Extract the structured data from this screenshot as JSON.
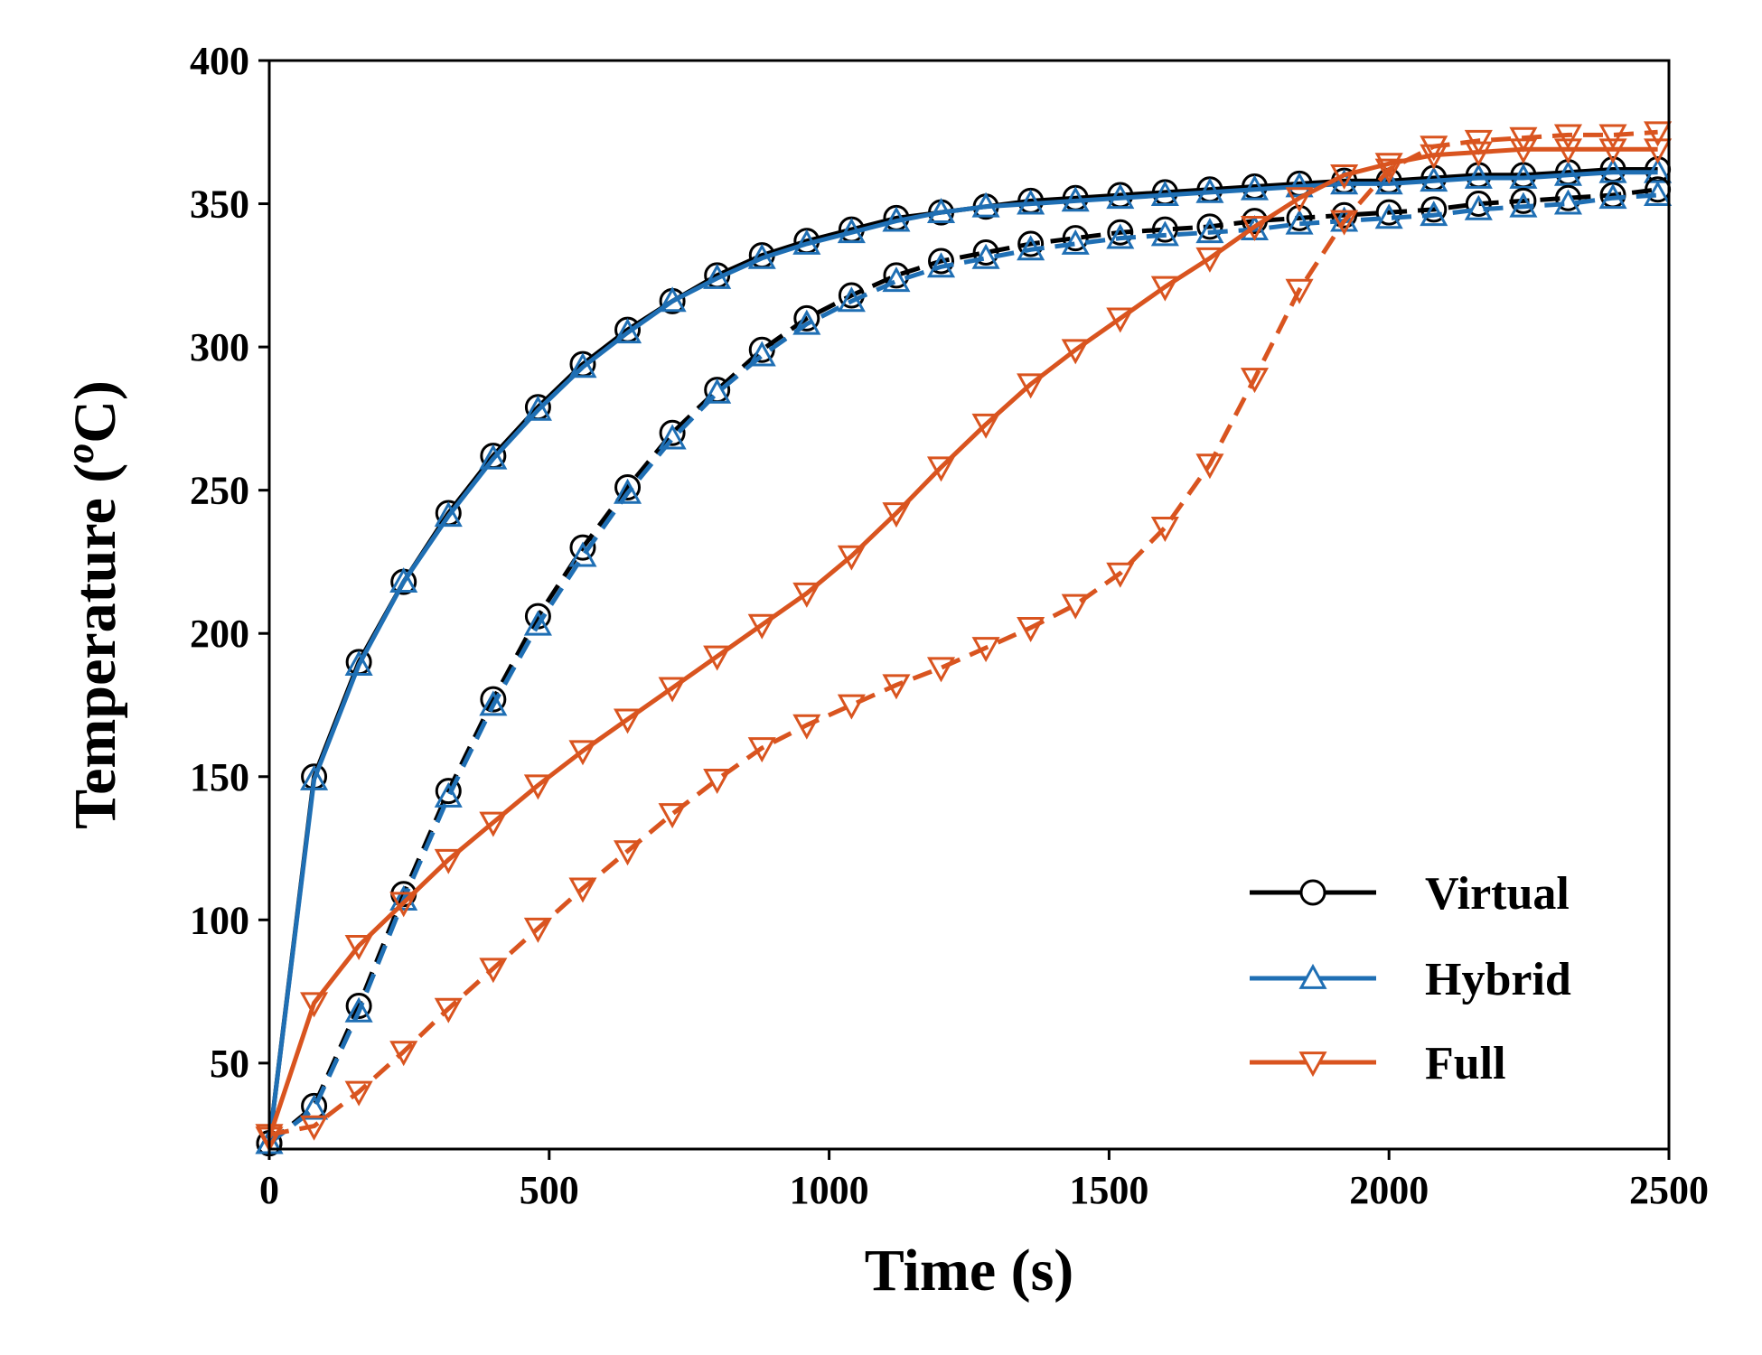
{
  "chart_data": {
    "type": "line",
    "title": "",
    "xlabel": "Time (s)",
    "ylabel_main": "Temperature (",
    "ylabel_sup": "o",
    "ylabel_end": "C)",
    "xlim": [
      0,
      2500
    ],
    "ylim": [
      20,
      400
    ],
    "xticks": [
      0,
      500,
      1000,
      1500,
      2000,
      2500
    ],
    "yticks": [
      50,
      100,
      150,
      200,
      250,
      300,
      350,
      400
    ],
    "xtick_labels": [
      "0",
      "500",
      "1000",
      "1500",
      "2000",
      "2500"
    ],
    "ytick_labels": [
      "50",
      "100",
      "150",
      "200",
      "250",
      "300",
      "350",
      "400"
    ],
    "grid": false,
    "legend_position": "bottom-right",
    "legend": [
      {
        "label": "Virtual",
        "color": "#000000",
        "marker": "circle"
      },
      {
        "label": "Hybrid",
        "color": "#1f6fb4",
        "marker": "triangle-up"
      },
      {
        "label": "Full",
        "color": "#d9541f",
        "marker": "triangle-down"
      }
    ],
    "series": [
      {
        "legend_group": "Virtual",
        "line": "solid",
        "color": "#000000",
        "marker": "circle",
        "x": [
          0,
          80,
          160,
          240,
          320,
          400,
          480,
          560,
          640,
          720,
          800,
          880,
          960,
          1040,
          1120,
          1200,
          1280,
          1360,
          1440,
          1520,
          1600,
          1680,
          1760,
          1840,
          1920,
          2000,
          2080,
          2160,
          2240,
          2320,
          2400,
          2480
        ],
        "y": [
          22,
          150,
          190,
          218,
          242,
          262,
          279,
          294,
          306,
          316,
          325,
          332,
          337,
          341,
          345,
          347,
          349,
          351,
          352,
          353,
          354,
          355,
          356,
          357,
          358,
          358,
          359,
          360,
          360,
          361,
          362,
          362
        ]
      },
      {
        "legend_group": "Hybrid",
        "line": "solid",
        "color": "#1f6fb4",
        "marker": "triangle-up",
        "x": [
          0,
          80,
          160,
          240,
          320,
          400,
          480,
          560,
          640,
          720,
          800,
          880,
          960,
          1040,
          1120,
          1200,
          1280,
          1360,
          1440,
          1520,
          1600,
          1680,
          1760,
          1840,
          1920,
          2000,
          2080,
          2160,
          2240,
          2320,
          2400,
          2480
        ],
        "y": [
          22,
          149,
          189,
          218,
          241,
          261,
          278,
          293,
          305,
          316,
          324,
          331,
          336,
          340,
          344,
          347,
          349,
          350,
          351,
          352,
          353,
          354,
          355,
          356,
          357,
          357,
          358,
          359,
          359,
          360,
          361,
          361
        ]
      },
      {
        "legend_group": "Virtual",
        "line": "dashed",
        "color": "#000000",
        "marker": "circle",
        "x": [
          0,
          80,
          160,
          240,
          320,
          400,
          480,
          560,
          640,
          720,
          800,
          880,
          960,
          1040,
          1120,
          1200,
          1280,
          1360,
          1440,
          1520,
          1600,
          1680,
          1760,
          1840,
          1920,
          2000,
          2080,
          2160,
          2240,
          2320,
          2400,
          2480
        ],
        "y": [
          22,
          35,
          70,
          109,
          145,
          177,
          206,
          230,
          251,
          270,
          285,
          299,
          310,
          318,
          325,
          330,
          333,
          336,
          338,
          340,
          341,
          342,
          344,
          345,
          346,
          347,
          348,
          350,
          351,
          352,
          353,
          355
        ]
      },
      {
        "legend_group": "Hybrid",
        "line": "dashed",
        "color": "#1f6fb4",
        "marker": "triangle-up",
        "x": [
          0,
          80,
          160,
          240,
          320,
          400,
          480,
          560,
          640,
          720,
          800,
          880,
          960,
          1040,
          1120,
          1200,
          1280,
          1360,
          1440,
          1520,
          1600,
          1680,
          1760,
          1840,
          1920,
          2000,
          2080,
          2160,
          2240,
          2320,
          2400,
          2480
        ],
        "y": [
          22,
          34,
          68,
          107,
          143,
          175,
          203,
          227,
          249,
          268,
          284,
          297,
          308,
          316,
          323,
          328,
          331,
          334,
          336,
          338,
          339,
          340,
          341,
          343,
          344,
          345,
          346,
          348,
          349,
          350,
          352,
          353
        ]
      },
      {
        "legend_group": "Full",
        "line": "solid",
        "color": "#d9541f",
        "marker": "triangle-down",
        "x": [
          0,
          80,
          160,
          240,
          320,
          400,
          480,
          560,
          640,
          720,
          800,
          880,
          960,
          1040,
          1120,
          1200,
          1280,
          1360,
          1440,
          1520,
          1600,
          1680,
          1760,
          1840,
          1920,
          2000,
          2080,
          2160,
          2240,
          2320,
          2400,
          2480
        ],
        "y": [
          24,
          71,
          91,
          106,
          121,
          134,
          147,
          159,
          170,
          181,
          192,
          203,
          214,
          227,
          242,
          258,
          273,
          287,
          299,
          310,
          321,
          331,
          342,
          352,
          360,
          364,
          367,
          368,
          369,
          369,
          369,
          369
        ]
      },
      {
        "legend_group": "Full",
        "line": "dashed",
        "color": "#d9541f",
        "marker": "triangle-down",
        "x": [
          0,
          80,
          160,
          240,
          320,
          400,
          480,
          560,
          640,
          720,
          800,
          880,
          960,
          1040,
          1120,
          1200,
          1280,
          1360,
          1440,
          1520,
          1600,
          1680,
          1760,
          1840,
          1920,
          2000,
          2080,
          2160,
          2240,
          2320,
          2400,
          2480
        ],
        "y": [
          25,
          28,
          40,
          54,
          69,
          83,
          97,
          111,
          124,
          137,
          149,
          160,
          168,
          175,
          182,
          188,
          195,
          202,
          210,
          221,
          237,
          259,
          289,
          320,
          344,
          362,
          370,
          372,
          373,
          374,
          374,
          375
        ]
      }
    ]
  }
}
